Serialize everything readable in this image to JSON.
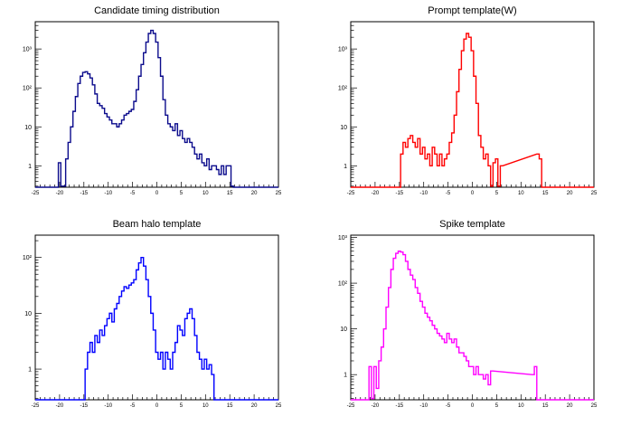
{
  "chart_data": [
    {
      "type": "line",
      "title": "Candidate timing distribution",
      "xlabel": "",
      "ylabel": "",
      "xlim": [
        -25,
        25
      ],
      "ylog": true,
      "color": "#0b0b8c",
      "x_ticks": [
        -25,
        -20,
        -15,
        -10,
        -5,
        0,
        5,
        10,
        15,
        20,
        25
      ],
      "y_ticks": [
        {
          "value": 1,
          "label": "1"
        },
        {
          "value": 10,
          "label": "10"
        },
        {
          "value": 100,
          "label": "10²"
        },
        {
          "value": 1000,
          "label": "10³"
        }
      ],
      "series": [
        {
          "x": [
            -20,
            -19.5,
            -19,
            -18.5,
            -18,
            -17.5,
            -17,
            -16.5,
            -16,
            -15.5,
            -15,
            -14.5,
            -14,
            -13.5,
            -13,
            -12.5,
            -12,
            -11.5,
            -11,
            -10.5,
            -10,
            -9.5,
            -9,
            -8.5,
            -8,
            -7.5,
            -7,
            -6.5,
            -6,
            -5.5,
            -5,
            -4.5,
            -4,
            -3.5,
            -3,
            -2.5,
            -2,
            -1.5,
            -1,
            -0.5,
            0,
            0.5,
            1,
            1.5,
            2,
            2.5,
            3,
            3.5,
            4,
            4.5,
            5,
            5.5,
            6,
            6.5,
            7,
            7.5,
            8,
            8.5,
            9,
            9.5,
            10,
            10.5,
            11,
            11.5,
            12,
            12.5,
            13,
            13.5,
            14,
            14.5,
            15,
            15.5
          ],
          "values": [
            1.2,
            0.3,
            0.3,
            1.5,
            4,
            10,
            25,
            60,
            130,
            200,
            250,
            260,
            230,
            180,
            120,
            70,
            40,
            35,
            30,
            22,
            18,
            15,
            12,
            12,
            10,
            12,
            15,
            20,
            22,
            25,
            28,
            45,
            90,
            200,
            400,
            800,
            1500,
            2500,
            3000,
            2500,
            1500,
            600,
            200,
            50,
            20,
            12,
            10,
            8,
            12,
            6,
            8,
            5,
            4,
            5,
            4,
            3,
            2,
            1.5,
            2,
            1.2,
            1,
            1.5,
            0.8,
            1,
            1,
            0.8,
            0.6,
            1,
            0.6,
            1,
            1,
            0.3
          ]
        }
      ]
    },
    {
      "type": "line",
      "title": "Prompt template(W)",
      "xlabel": "",
      "ylabel": "",
      "xlim": [
        -25,
        25
      ],
      "ylog": true,
      "color": "#ff0000",
      "x_ticks": [
        -25,
        -20,
        -15,
        -10,
        -5,
        0,
        5,
        10,
        15,
        20,
        25
      ],
      "y_ticks": [
        {
          "value": 1,
          "label": "1"
        },
        {
          "value": 10,
          "label": "10"
        },
        {
          "value": 100,
          "label": "10²"
        },
        {
          "value": 1000,
          "label": "10³"
        }
      ],
      "series": [
        {
          "x": [
            -14.5,
            -14,
            -13.5,
            -13,
            -12.5,
            -12,
            -11.5,
            -11,
            -10.5,
            -10,
            -9.5,
            -9,
            -8.5,
            -8,
            -7.5,
            -7,
            -6.5,
            -6,
            -5.5,
            -5,
            -4.5,
            -4,
            -3.5,
            -3,
            -2.5,
            -2,
            -1.5,
            -1,
            -0.5,
            0,
            0.5,
            1,
            1.5,
            2,
            2.5,
            3,
            3.5,
            4,
            4.5,
            5,
            5.5,
            6,
            13.5,
            14
          ],
          "values": [
            2,
            4,
            3,
            5,
            6,
            4,
            3,
            5,
            2,
            3,
            1.5,
            2,
            1,
            3,
            2,
            1,
            2,
            1,
            1.5,
            2,
            4,
            7,
            20,
            80,
            300,
            900,
            1800,
            2500,
            2000,
            900,
            200,
            40,
            6,
            3,
            1.5,
            2,
            1,
            0.3,
            1.2,
            1.5,
            0.3,
            1,
            2,
            1.5
          ]
        }
      ]
    },
    {
      "type": "line",
      "title": "Beam halo template",
      "xlabel": "",
      "ylabel": "",
      "xlim": [
        -25,
        25
      ],
      "ylog": true,
      "color": "#0000ff",
      "x_ticks": [
        -25,
        -20,
        -15,
        -10,
        -5,
        0,
        5,
        10,
        15,
        20,
        25
      ],
      "y_ticks": [
        {
          "value": 1,
          "label": "1"
        },
        {
          "value": 10,
          "label": "10"
        },
        {
          "value": 100,
          "label": "10²"
        }
      ],
      "series": [
        {
          "x": [
            -14.5,
            -14,
            -13.5,
            -13,
            -12.5,
            -12,
            -11.5,
            -11,
            -10.5,
            -10,
            -9.5,
            -9,
            -8.5,
            -8,
            -7.5,
            -7,
            -6.5,
            -6,
            -5.5,
            -5,
            -4.5,
            -4,
            -3.5,
            -3,
            -2.5,
            -2,
            -1.5,
            -1,
            -0.5,
            0,
            0.5,
            1,
            1.5,
            2,
            2.5,
            3,
            3.5,
            4,
            4.5,
            5,
            5.5,
            6,
            6.5,
            7,
            7.5,
            8,
            8.5,
            9,
            9.5,
            10,
            10.5,
            11,
            11.5
          ],
          "values": [
            1,
            2,
            3,
            2,
            4,
            3,
            5,
            4,
            6,
            8,
            10,
            7,
            12,
            15,
            20,
            25,
            30,
            28,
            32,
            35,
            40,
            60,
            80,
            100,
            70,
            40,
            20,
            10,
            5,
            2,
            1.5,
            2,
            1,
            2,
            1.5,
            1,
            2,
            3,
            6,
            5,
            4,
            8,
            10,
            12,
            8,
            4,
            2,
            1.5,
            1,
            1.5,
            1,
            1.2,
            0.8
          ]
        }
      ]
    },
    {
      "type": "line",
      "title": "Spike template",
      "xlabel": "",
      "ylabel": "",
      "xlim": [
        -25,
        25
      ],
      "ylog": true,
      "color": "#ff00ff",
      "x_ticks": [
        -25,
        -20,
        -15,
        -10,
        -5,
        0,
        5,
        10,
        15,
        20,
        25
      ],
      "y_ticks": [
        {
          "value": 1,
          "label": "1"
        },
        {
          "value": 10,
          "label": "10"
        },
        {
          "value": 100,
          "label": "10²"
        },
        {
          "value": 1000,
          "label": "10³"
        }
      ],
      "series": [
        {
          "x": [
            -21,
            -20.5,
            -20,
            -19.5,
            -19,
            -18.5,
            -18,
            -17.5,
            -17,
            -16.5,
            -16,
            -15.5,
            -15,
            -14.5,
            -14,
            -13.5,
            -13,
            -12.5,
            -12,
            -11.5,
            -11,
            -10.5,
            -10,
            -9.5,
            -9,
            -8.5,
            -8,
            -7.5,
            -7,
            -6.5,
            -6,
            -5.5,
            -5,
            -4.5,
            -4,
            -3.5,
            -3,
            -2.5,
            -2,
            -1.5,
            -1,
            -0.5,
            0,
            0.5,
            1,
            1.5,
            2,
            2.5,
            3,
            3.5,
            4,
            12.5,
            13
          ],
          "values": [
            1.5,
            0.3,
            1.5,
            0.5,
            2,
            4,
            10,
            30,
            80,
            200,
            350,
            450,
            500,
            480,
            420,
            300,
            200,
            150,
            120,
            80,
            60,
            40,
            30,
            22,
            18,
            15,
            12,
            10,
            8,
            7,
            6,
            5,
            8,
            6,
            5,
            6,
            4,
            3,
            3,
            2.5,
            2,
            1.5,
            1.5,
            1,
            1.5,
            1,
            1,
            0.8,
            1,
            0.6,
            1.2,
            1,
            1.5
          ]
        }
      ]
    }
  ]
}
